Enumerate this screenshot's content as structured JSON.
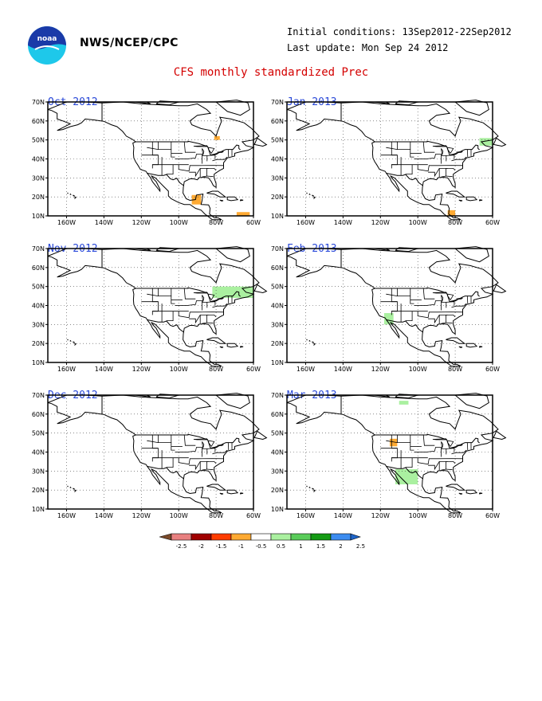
{
  "header": {
    "agency": "NWS/NCEP/CPC",
    "initial_conditions": "Initial conditions: 13Sep2012-22Sep2012",
    "last_update": "Last update: Mon Sep 24 2012",
    "title": "CFS monthly standardized Prec"
  },
  "axes": {
    "lon_labels": [
      "160W",
      "140W",
      "120W",
      "100W",
      "80W",
      "60W"
    ],
    "lat_labels": [
      "70N",
      "60N",
      "50N",
      "40N",
      "30N",
      "20N",
      "10N"
    ]
  },
  "panels": [
    {
      "title": "Oct 2012",
      "anomalies": [
        {
          "category": "-1",
          "lon": [
            -81,
            -78
          ],
          "lat": [
            50,
            52
          ]
        },
        {
          "category": "-1",
          "lon": [
            -93,
            -88
          ],
          "lat": [
            16,
            21
          ]
        },
        {
          "category": "-1",
          "lon": [
            -69,
            -62
          ],
          "lat": [
            10,
            12
          ]
        }
      ]
    },
    {
      "title": "Jan 2013",
      "anomalies": [
        {
          "category": "0.5",
          "lon": [
            -67,
            -60
          ],
          "lat": [
            47,
            51
          ]
        },
        {
          "category": "-1",
          "lon": [
            -84,
            -80
          ],
          "lat": [
            10,
            13
          ]
        }
      ]
    },
    {
      "title": "Nov 2012",
      "anomalies": [
        {
          "category": "0.5",
          "lon": [
            -82,
            -60
          ],
          "lat": [
            44,
            50
          ]
        }
      ]
    },
    {
      "title": "Feb 2013",
      "anomalies": [
        {
          "category": "0.5",
          "lon": [
            -118,
            -113
          ],
          "lat": [
            30,
            36
          ]
        }
      ]
    },
    {
      "title": "Dec 2012",
      "anomalies": []
    },
    {
      "title": "Mar 2013",
      "anomalies": [
        {
          "category": "0.5",
          "lon": [
            -110,
            -105
          ],
          "lat": [
            65,
            67
          ]
        },
        {
          "category": "-1",
          "lon": [
            -115,
            -111
          ],
          "lat": [
            43,
            47
          ]
        },
        {
          "category": "0.5",
          "lon": [
            -112,
            -100
          ],
          "lat": [
            23,
            31
          ]
        }
      ]
    }
  ],
  "colorbar": {
    "labels": [
      "-2.5",
      "-2",
      "-1.5",
      "-1",
      "-0.5",
      "0.5",
      "1",
      "1.5",
      "2",
      "2.5"
    ],
    "colors": [
      "#7a4a2a",
      "#e88080",
      "#a00000",
      "#ff3c00",
      "#ffaa33",
      "#ffffff",
      "#aaf0a0",
      "#5acc5a",
      "#159b15",
      "#3c8cf0",
      "#1e64c8"
    ]
  },
  "colors": {
    "title": "#d40000",
    "panel_title": "#2a49d8",
    "noaa_blue": "#1a3aa8",
    "noaa_cyan": "#1ec8ea"
  }
}
